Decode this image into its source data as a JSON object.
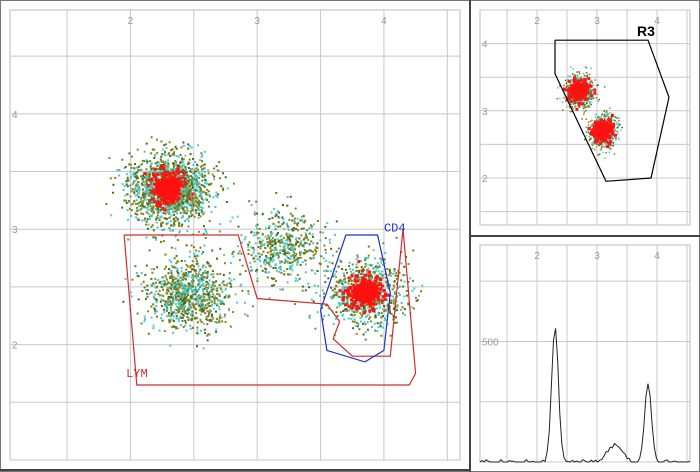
{
  "chart_data": [
    {
      "type": "scatter",
      "x_ticks": [
        "2",
        "3",
        "4"
      ],
      "y_ticks": [
        "4",
        "3",
        "2"
      ],
      "xlim": [
        1.05,
        4.6
      ],
      "ylim": [
        1.0,
        4.9
      ],
      "grid": true,
      "clusters": [
        {
          "x": 2.3,
          "y": 3.35,
          "n": 1600,
          "core": true
        },
        {
          "x": 2.45,
          "y": 2.45,
          "n": 900,
          "core": false
        },
        {
          "x": 3.2,
          "y": 2.85,
          "n": 500,
          "core": false
        },
        {
          "x": 3.85,
          "y": 2.45,
          "n": 800,
          "core": true
        }
      ],
      "gates": [
        {
          "label": "LYM",
          "color": "#d42b2b",
          "points": [
            [
              1.95,
              2.95
            ],
            [
              2.85,
              2.95
            ],
            [
              3.0,
              2.4
            ],
            [
              3.55,
              2.35
            ],
            [
              3.65,
              2.2
            ],
            [
              3.6,
              2.05
            ],
            [
              3.75,
              1.9
            ],
            [
              4.05,
              1.9
            ],
            [
              4.15,
              3.0
            ],
            [
              4.25,
              1.75
            ],
            [
              4.2,
              1.65
            ],
            [
              2.05,
              1.65
            ],
            [
              1.95,
              2.95
            ]
          ]
        },
        {
          "label": "CD4",
          "color": "#1c2fd0",
          "points": [
            [
              3.7,
              2.95
            ],
            [
              3.95,
              2.95
            ],
            [
              4.05,
              2.45
            ],
            [
              4.0,
              1.95
            ],
            [
              3.85,
              1.85
            ],
            [
              3.55,
              1.95
            ],
            [
              3.5,
              2.3
            ],
            [
              3.7,
              2.95
            ]
          ]
        }
      ]
    },
    {
      "type": "scatter",
      "x_ticks": [
        "2",
        "3",
        "4"
      ],
      "y_ticks": [
        "4",
        "3",
        "2"
      ],
      "xlim": [
        1.05,
        4.55
      ],
      "ylim": [
        1.3,
        4.5
      ],
      "grid": true,
      "clusters": [
        {
          "x": 2.7,
          "y": 3.3,
          "n": 700,
          "core": true
        },
        {
          "x": 3.1,
          "y": 2.7,
          "n": 600,
          "core": true
        }
      ],
      "gates": [
        {
          "label": "R3",
          "color": "#000000",
          "points": [
            [
              2.3,
              4.05
            ],
            [
              3.85,
              4.05
            ],
            [
              4.2,
              3.2
            ],
            [
              3.9,
              2.0
            ],
            [
              3.15,
              1.95
            ],
            [
              2.3,
              3.55
            ],
            [
              2.3,
              4.05
            ]
          ]
        }
      ]
    },
    {
      "type": "line",
      "x_ticks": [
        "2",
        "3",
        "4"
      ],
      "y_ticks": [
        "500"
      ],
      "xlim": [
        1.05,
        4.55
      ],
      "ylim": [
        0,
        900
      ],
      "grid": true,
      "peaks": [
        {
          "x": 2.3,
          "height": 560
        },
        {
          "x": 3.3,
          "height": 70
        },
        {
          "x": 3.85,
          "height": 330
        }
      ]
    }
  ]
}
